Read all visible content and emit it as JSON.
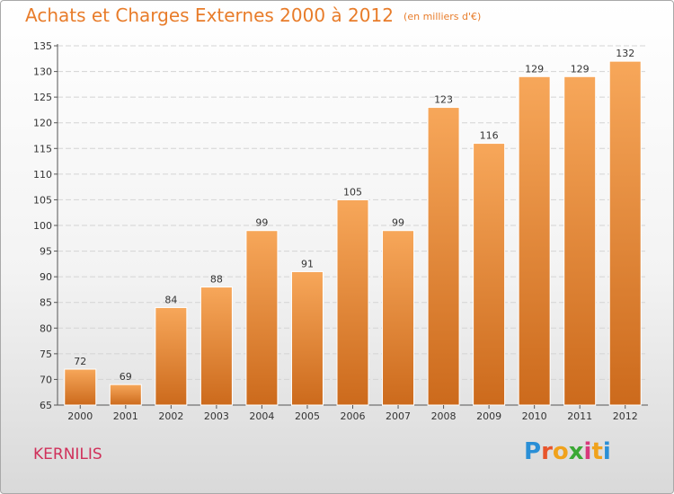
{
  "title": "Achats et Charges Externes 2000 à 2012",
  "unit_note": "(en milliers d'€)",
  "commune": "KERNILIS",
  "logo": {
    "letters": [
      "P",
      "r",
      "o",
      "x",
      "i",
      "t",
      "i"
    ],
    "colors": [
      "#2a8fd6",
      "#e8552b",
      "#f0a21c",
      "#3aa834",
      "#d8387c",
      "#f0a21c",
      "#2a8fd6"
    ]
  },
  "colors": {
    "bar_top": "#f7a75a",
    "bar_bottom": "#cc6a1c",
    "title": "#e87c2a",
    "commune": "#d0305a"
  },
  "chart_data": {
    "type": "bar",
    "categories": [
      "2000",
      "2001",
      "2002",
      "2003",
      "2004",
      "2005",
      "2006",
      "2007",
      "2008",
      "2009",
      "2010",
      "2011",
      "2012"
    ],
    "values": [
      72,
      69,
      84,
      88,
      99,
      91,
      105,
      99,
      123,
      116,
      129,
      129,
      132
    ],
    "ylim": [
      65,
      135
    ],
    "yticks": [
      65,
      70,
      75,
      80,
      85,
      90,
      95,
      100,
      105,
      110,
      115,
      120,
      125,
      130,
      135
    ],
    "grid": true,
    "legend": "none"
  }
}
